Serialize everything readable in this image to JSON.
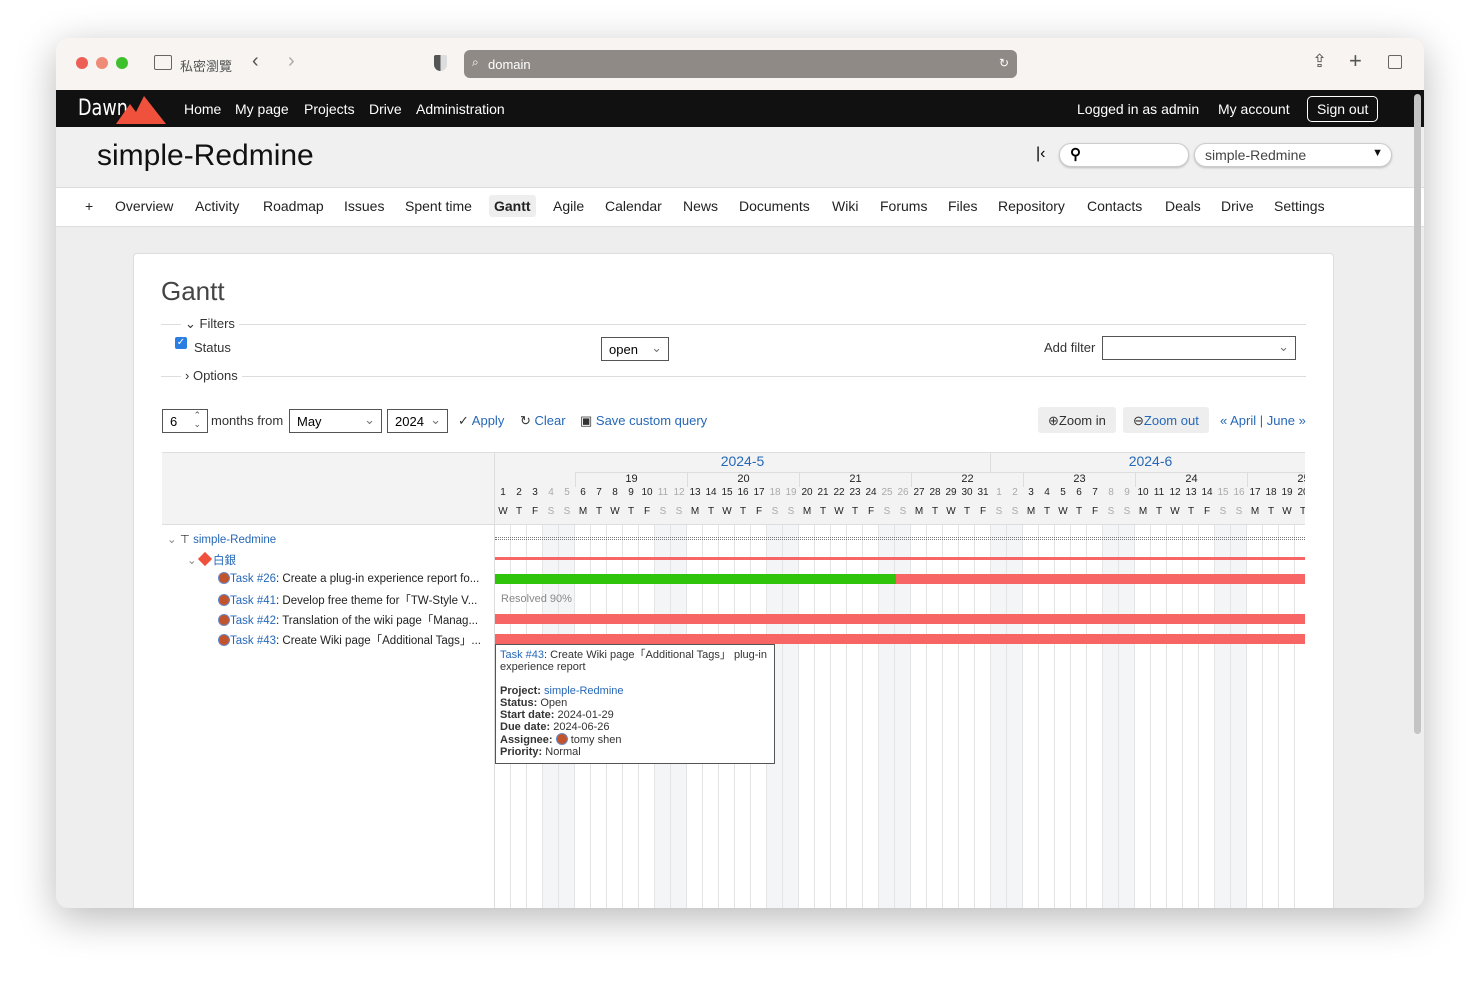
{
  "browser": {
    "private_label": "私密瀏覽",
    "url": "domain"
  },
  "topbar": {
    "logo": "Dawn",
    "nav": [
      "Home",
      "My page",
      "Projects",
      "Drive",
      "Administration"
    ],
    "logged_in": "Logged in as admin",
    "my_account": "My account",
    "sign_out": "Sign out"
  },
  "header": {
    "title": "simple-Redmine",
    "search_value": "",
    "project_select": "simple-Redmine"
  },
  "tabs": {
    "new": "+",
    "items": [
      "Overview",
      "Activity",
      "Roadmap",
      "Issues",
      "Spent time",
      "Gantt",
      "Agile",
      "Calendar",
      "News",
      "Documents",
      "Wiki",
      "Forums",
      "Files",
      "Repository",
      "Contacts",
      "Deals",
      "Drive",
      "Settings"
    ],
    "selected": "Gantt"
  },
  "gantt": {
    "title": "Gantt",
    "filters_label": "Filters",
    "status_label": "Status",
    "status_checked": true,
    "status_value": "open",
    "add_filter_label": "Add filter",
    "add_filter_value": "",
    "options_label": "Options",
    "months_value": "6",
    "months_from_label": "months from",
    "month_select": "May",
    "year_select": "2024",
    "apply": "Apply",
    "clear": "Clear",
    "save_query": "Save custom query",
    "zoom_in": "Zoom in",
    "zoom_out": "Zoom out",
    "prev": "« April",
    "sep": "|",
    "next": "June »",
    "months": [
      {
        "label": "2024-5",
        "days": 31
      },
      {
        "label": "2024-6",
        "days": 20
      }
    ],
    "weeks": [
      {
        "label": "19",
        "start_day_index": 5
      },
      {
        "label": "20",
        "start_day_index": 12
      },
      {
        "label": "21",
        "start_day_index": 19
      },
      {
        "label": "22",
        "start_day_index": 26
      },
      {
        "label": "23",
        "start_day_index": 33
      },
      {
        "label": "24",
        "start_day_index": 40
      },
      {
        "label": "25",
        "start_day_index": 47
      }
    ],
    "days": [
      1,
      2,
      3,
      4,
      5,
      6,
      7,
      8,
      9,
      10,
      11,
      12,
      13,
      14,
      15,
      16,
      17,
      18,
      19,
      20,
      21,
      22,
      23,
      24,
      25,
      26,
      27,
      28,
      29,
      30,
      31,
      1,
      2,
      3,
      4,
      5,
      6,
      7,
      8,
      9,
      10,
      11,
      12,
      13,
      14,
      15,
      16,
      17,
      18,
      19,
      20
    ],
    "weekdays": [
      "W",
      "T",
      "F",
      "S",
      "S",
      "M",
      "T",
      "W",
      "T",
      "F",
      "S",
      "S",
      "M",
      "T",
      "W",
      "T",
      "F",
      "S",
      "S",
      "M",
      "T",
      "W",
      "T",
      "F",
      "S",
      "S",
      "M",
      "T",
      "W",
      "T",
      "F",
      "S",
      "S",
      "M",
      "T",
      "W",
      "T",
      "F",
      "S",
      "S",
      "M",
      "T",
      "W",
      "T",
      "F",
      "S",
      "S",
      "M",
      "T",
      "W",
      "T"
    ],
    "rows": [
      {
        "type": "project",
        "label": "simple-Redmine",
        "bar": "project"
      },
      {
        "type": "version",
        "label": "白銀",
        "bar": "version"
      },
      {
        "type": "issue",
        "id": "Task #26",
        "subject": ": Create a plug-in experience report fo...",
        "bar": "task",
        "done_days": 25
      },
      {
        "type": "issue",
        "id": "Task #41",
        "subject": ": Develop free theme for「TW-Style V...",
        "bar": "none",
        "status_text": "Resolved 90%"
      },
      {
        "type": "issue",
        "id": "Task #42",
        "subject": ": Translation of the wiki page「Manag...",
        "bar": "task",
        "done_days": 0
      },
      {
        "type": "issue",
        "id": "Task #43",
        "subject": ": Create Wiki page「Additional Tags」...",
        "bar": "task",
        "done_days": 0
      }
    ],
    "colors": {
      "done": "#2fc40a",
      "late": "#f76565",
      "weekend": "#f3f5f7"
    },
    "tooltip": {
      "id": "Task #43",
      "subject": ": Create Wiki page「Additional Tags」 plug-in experience report",
      "project_label": "Project",
      "project": "simple-Redmine",
      "status_label": "Status",
      "status": "Open",
      "start_label": "Start date",
      "start": "2024-01-29",
      "due_label": "Due date",
      "due": "2024-06-26",
      "assignee_label": "Assignee",
      "assignee": "tomy shen",
      "priority_label": "Priority",
      "priority": "Normal"
    }
  }
}
